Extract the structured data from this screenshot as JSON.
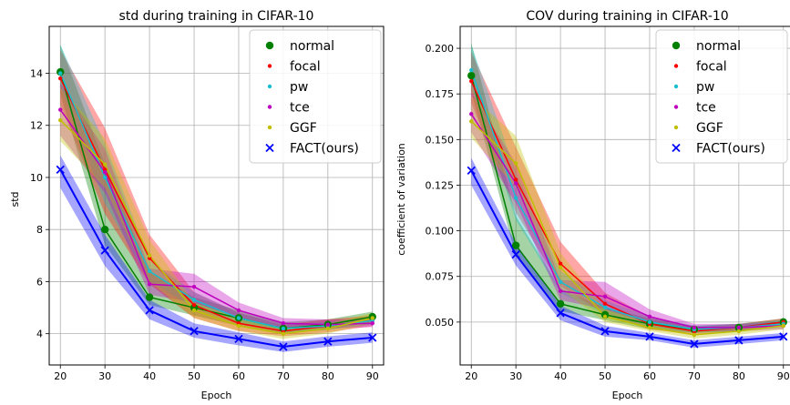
{
  "chart_data": [
    {
      "type": "line",
      "title": "std during training in CIFAR-10",
      "xlabel": "Epoch",
      "ylabel": "std",
      "xlim": [
        17.5,
        92.5
      ],
      "ylim": [
        2.8,
        15.8
      ],
      "xticks": [
        "20",
        "30",
        "40",
        "50",
        "60",
        "70",
        "80",
        "90"
      ],
      "yticks": [
        "4",
        "6",
        "8",
        "10",
        "12",
        "14"
      ],
      "grid": true,
      "legend_position": "top-right",
      "x": [
        20,
        30,
        40,
        50,
        60,
        70,
        80,
        90
      ],
      "series": [
        {
          "name": "normal",
          "color": "#008000",
          "marker": "circle",
          "values": [
            14.05,
            8.0,
            5.4,
            5.0,
            4.6,
            4.2,
            4.35,
            4.65
          ],
          "band": [
            [
              13.2,
              15.1
            ],
            [
              7.4,
              10.5
            ],
            [
              5.1,
              6.4
            ],
            [
              4.7,
              5.4
            ],
            [
              4.3,
              4.9
            ],
            [
              4.0,
              4.45
            ],
            [
              4.15,
              4.55
            ],
            [
              4.45,
              4.85
            ]
          ]
        },
        {
          "name": "focal",
          "color": "#ff0000",
          "marker": "dot",
          "values": [
            13.8,
            10.3,
            6.9,
            5.1,
            4.4,
            4.1,
            4.3,
            4.5
          ],
          "band": [
            [
              12.8,
              14.9
            ],
            [
              8.6,
              11.9
            ],
            [
              5.9,
              7.8
            ],
            [
              4.6,
              5.6
            ],
            [
              4.1,
              4.8
            ],
            [
              3.9,
              4.35
            ],
            [
              4.05,
              4.55
            ],
            [
              4.3,
              4.7
            ]
          ]
        },
        {
          "name": "pw",
          "color": "#17becf",
          "marker": "dot",
          "values": [
            14.0,
            10.0,
            6.4,
            5.3,
            4.6,
            4.2,
            4.3,
            4.5
          ],
          "band": [
            [
              13.5,
              15.1
            ],
            [
              9.0,
              11.3
            ],
            [
              6.0,
              6.8
            ],
            [
              5.0,
              5.6
            ],
            [
              4.4,
              4.8
            ],
            [
              4.05,
              4.35
            ],
            [
              4.15,
              4.45
            ],
            [
              4.35,
              4.65
            ]
          ]
        },
        {
          "name": "tce",
          "color": "#bf00bf",
          "marker": "dot",
          "values": [
            12.6,
            10.2,
            5.9,
            5.8,
            4.9,
            4.4,
            4.35,
            4.4
          ],
          "band": [
            [
              11.6,
              13.6
            ],
            [
              9.4,
              11.1
            ],
            [
              5.5,
              6.5
            ],
            [
              5.2,
              6.3
            ],
            [
              4.6,
              5.2
            ],
            [
              4.2,
              4.6
            ],
            [
              4.2,
              4.55
            ],
            [
              4.25,
              4.55
            ]
          ]
        },
        {
          "name": "GGF",
          "color": "#bfbf00",
          "marker": "dot",
          "values": [
            12.2,
            10.5,
            7.0,
            4.9,
            4.3,
            4.0,
            4.2,
            4.6
          ],
          "band": [
            [
              11.4,
              13.5
            ],
            [
              9.6,
              11.5
            ],
            [
              6.0,
              7.6
            ],
            [
              4.6,
              5.2
            ],
            [
              4.1,
              4.6
            ],
            [
              3.8,
              4.2
            ],
            [
              4.0,
              4.4
            ],
            [
              4.4,
              4.8
            ]
          ]
        },
        {
          "name": "FACT(ours)",
          "color": "#0000ff",
          "marker": "x",
          "values": [
            10.3,
            7.2,
            4.9,
            4.1,
            3.8,
            3.5,
            3.7,
            3.85
          ],
          "band": [
            [
              9.6,
              10.85
            ],
            [
              6.6,
              7.8
            ],
            [
              4.55,
              5.3
            ],
            [
              3.85,
              4.4
            ],
            [
              3.55,
              4.05
            ],
            [
              3.3,
              3.7
            ],
            [
              3.5,
              3.9
            ],
            [
              3.65,
              4.05
            ]
          ]
        }
      ]
    },
    {
      "type": "line",
      "title": "COV during training in CIFAR-10",
      "xlabel": "Epoch",
      "ylabel": "coefficient of variation",
      "xlim": [
        17.5,
        92.5
      ],
      "ylim": [
        0.0265,
        0.212
      ],
      "xticks": [
        "20",
        "30",
        "40",
        "50",
        "60",
        "70",
        "80",
        "90"
      ],
      "yticks": [
        "0.050",
        "0.075",
        "0.100",
        "0.125",
        "0.150",
        "0.175",
        "0.200"
      ],
      "grid": true,
      "legend_position": "top-right",
      "x": [
        20,
        30,
        40,
        50,
        60,
        70,
        80,
        90
      ],
      "series": [
        {
          "name": "normal",
          "color": "#008000",
          "marker": "circle",
          "values": [
            0.185,
            0.092,
            0.06,
            0.054,
            0.049,
            0.046,
            0.047,
            0.05
          ],
          "band": [
            [
              0.176,
              0.203
            ],
            [
              0.086,
              0.108
            ],
            [
              0.056,
              0.068
            ],
            [
              0.051,
              0.058
            ],
            [
              0.046,
              0.052
            ],
            [
              0.044,
              0.048
            ],
            [
              0.045,
              0.049
            ],
            [
              0.048,
              0.052
            ]
          ]
        },
        {
          "name": "focal",
          "color": "#ff0000",
          "marker": "dot",
          "values": [
            0.182,
            0.128,
            0.082,
            0.06,
            0.049,
            0.045,
            0.047,
            0.05
          ],
          "band": [
            [
              0.17,
              0.198
            ],
            [
              0.11,
              0.146
            ],
            [
              0.07,
              0.094
            ],
            [
              0.054,
              0.066
            ],
            [
              0.046,
              0.053
            ],
            [
              0.043,
              0.047
            ],
            [
              0.045,
              0.049
            ],
            [
              0.048,
              0.052
            ]
          ]
        },
        {
          "name": "pw",
          "color": "#17becf",
          "marker": "dot",
          "values": [
            0.188,
            0.118,
            0.072,
            0.058,
            0.05,
            0.046,
            0.047,
            0.049
          ],
          "band": [
            [
              0.18,
              0.202
            ],
            [
              0.106,
              0.132
            ],
            [
              0.066,
              0.078
            ],
            [
              0.054,
              0.062
            ],
            [
              0.047,
              0.053
            ],
            [
              0.044,
              0.048
            ],
            [
              0.045,
              0.049
            ],
            [
              0.047,
              0.051
            ]
          ]
        },
        {
          "name": "tce",
          "color": "#bf00bf",
          "marker": "dot",
          "values": [
            0.164,
            0.126,
            0.067,
            0.064,
            0.053,
            0.047,
            0.047,
            0.048
          ],
          "band": [
            [
              0.154,
              0.176
            ],
            [
              0.115,
              0.137
            ],
            [
              0.062,
              0.073
            ],
            [
              0.057,
              0.072
            ],
            [
              0.049,
              0.057
            ],
            [
              0.045,
              0.049
            ],
            [
              0.045,
              0.049
            ],
            [
              0.046,
              0.05
            ]
          ]
        },
        {
          "name": "GGF",
          "color": "#bfbf00",
          "marker": "dot",
          "values": [
            0.16,
            0.137,
            0.08,
            0.053,
            0.047,
            0.043,
            0.045,
            0.048
          ],
          "band": [
            [
              0.151,
              0.174
            ],
            [
              0.124,
              0.152
            ],
            [
              0.068,
              0.088
            ],
            [
              0.05,
              0.057
            ],
            [
              0.045,
              0.05
            ],
            [
              0.041,
              0.046
            ],
            [
              0.043,
              0.047
            ],
            [
              0.046,
              0.05
            ]
          ]
        },
        {
          "name": "FACT(ours)",
          "color": "#0000ff",
          "marker": "x",
          "values": [
            0.133,
            0.087,
            0.055,
            0.045,
            0.042,
            0.038,
            0.04,
            0.042
          ],
          "band": [
            [
              0.125,
              0.14
            ],
            [
              0.081,
              0.093
            ],
            [
              0.051,
              0.059
            ],
            [
              0.042,
              0.048
            ],
            [
              0.04,
              0.044
            ],
            [
              0.036,
              0.04
            ],
            [
              0.038,
              0.042
            ],
            [
              0.04,
              0.044
            ]
          ]
        }
      ]
    }
  ]
}
